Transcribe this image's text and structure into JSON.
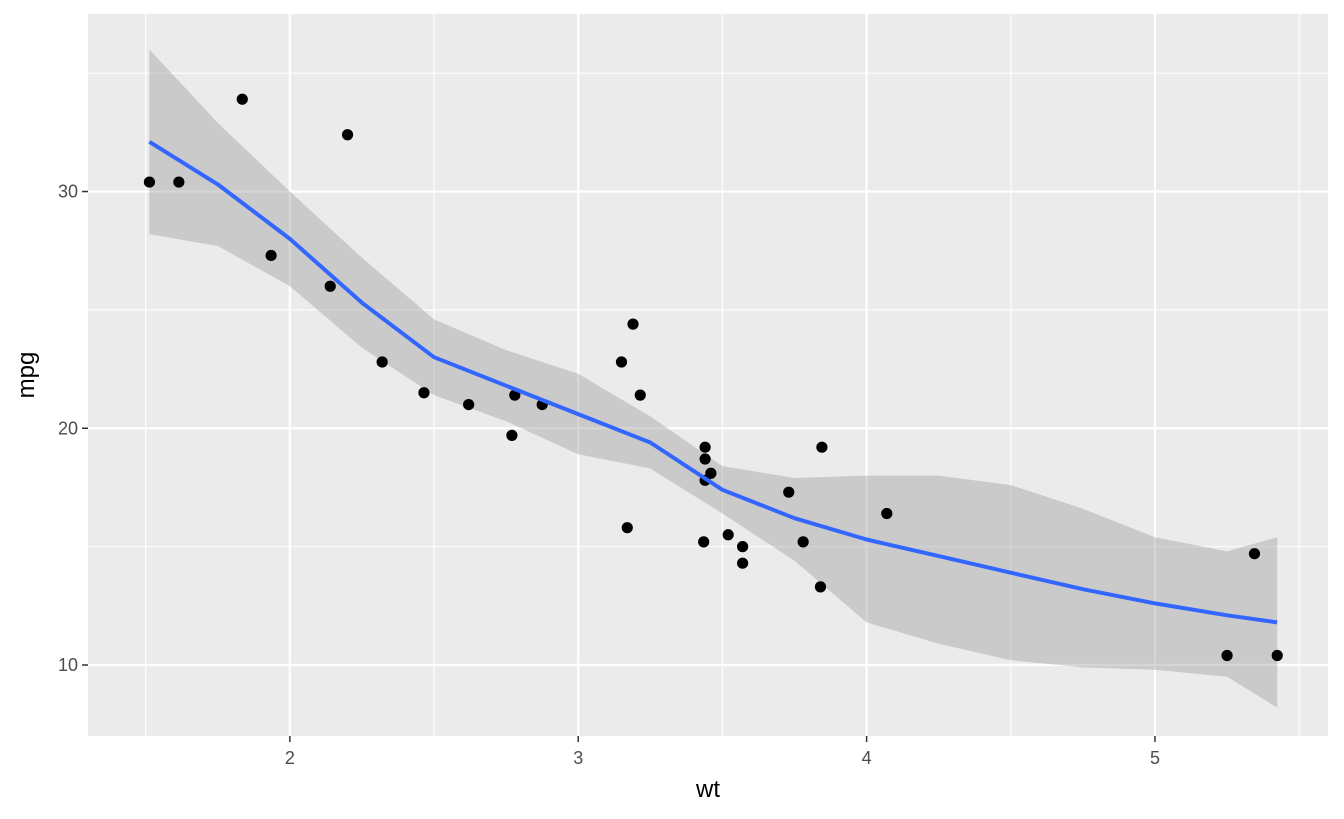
{
  "chart_data": {
    "type": "scatter",
    "xlabel": "wt",
    "ylabel": "mpg",
    "xlim": [
      1.3,
      5.6
    ],
    "ylim": [
      7,
      37.5
    ],
    "x_ticks": [
      2,
      3,
      4,
      5
    ],
    "x_tick_labels": [
      "2",
      "3",
      "4",
      "5"
    ],
    "y_ticks": [
      10,
      20,
      30
    ],
    "y_tick_labels": [
      "10",
      "20",
      "30"
    ],
    "grid": true,
    "colors": {
      "panel": "#ebebeb",
      "grid": "#ffffff",
      "points": "#000000",
      "smooth_line": "#3366ff",
      "ribbon": "#999999"
    },
    "points": [
      {
        "x": 1.513,
        "y": 30.4
      },
      {
        "x": 1.615,
        "y": 30.4
      },
      {
        "x": 1.835,
        "y": 33.9
      },
      {
        "x": 1.935,
        "y": 27.3
      },
      {
        "x": 2.14,
        "y": 26.0
      },
      {
        "x": 2.2,
        "y": 32.4
      },
      {
        "x": 2.32,
        "y": 22.8
      },
      {
        "x": 2.465,
        "y": 21.5
      },
      {
        "x": 2.62,
        "y": 21.0
      },
      {
        "x": 2.77,
        "y": 19.7
      },
      {
        "x": 2.78,
        "y": 21.4
      },
      {
        "x": 2.875,
        "y": 21.0
      },
      {
        "x": 3.15,
        "y": 22.8
      },
      {
        "x": 3.17,
        "y": 15.8
      },
      {
        "x": 3.19,
        "y": 24.4
      },
      {
        "x": 3.215,
        "y": 21.4
      },
      {
        "x": 3.435,
        "y": 15.2
      },
      {
        "x": 3.44,
        "y": 18.7
      },
      {
        "x": 3.44,
        "y": 17.8
      },
      {
        "x": 3.44,
        "y": 19.2
      },
      {
        "x": 3.46,
        "y": 18.1
      },
      {
        "x": 3.52,
        "y": 15.5
      },
      {
        "x": 3.57,
        "y": 14.3
      },
      {
        "x": 3.57,
        "y": 15.0
      },
      {
        "x": 3.73,
        "y": 17.3
      },
      {
        "x": 3.78,
        "y": 15.2
      },
      {
        "x": 3.84,
        "y": 13.3
      },
      {
        "x": 3.845,
        "y": 19.2
      },
      {
        "x": 4.07,
        "y": 16.4
      },
      {
        "x": 5.25,
        "y": 10.4
      },
      {
        "x": 5.345,
        "y": 14.7
      },
      {
        "x": 5.424,
        "y": 10.4
      }
    ],
    "smooth": [
      {
        "x": 1.513,
        "y": 32.1,
        "ymin": 28.2,
        "ymax": 36.0
      },
      {
        "x": 1.75,
        "y": 30.3,
        "ymin": 27.7,
        "ymax": 32.9
      },
      {
        "x": 2.0,
        "y": 28.0,
        "ymin": 26.0,
        "ymax": 30.0
      },
      {
        "x": 2.25,
        "y": 25.3,
        "ymin": 23.4,
        "ymax": 27.2
      },
      {
        "x": 2.5,
        "y": 23.0,
        "ymin": 21.4,
        "ymax": 24.6
      },
      {
        "x": 2.75,
        "y": 21.8,
        "ymin": 20.3,
        "ymax": 23.3
      },
      {
        "x": 3.0,
        "y": 20.6,
        "ymin": 18.9,
        "ymax": 22.3
      },
      {
        "x": 3.25,
        "y": 19.4,
        "ymin": 18.3,
        "ymax": 20.5
      },
      {
        "x": 3.5,
        "y": 17.4,
        "ymin": 16.4,
        "ymax": 18.4
      },
      {
        "x": 3.75,
        "y": 16.2,
        "ymin": 14.4,
        "ymax": 17.9
      },
      {
        "x": 4.0,
        "y": 15.3,
        "ymin": 11.8,
        "ymax": 18.0
      },
      {
        "x": 4.25,
        "y": 14.6,
        "ymin": 10.9,
        "ymax": 18.0
      },
      {
        "x": 4.5,
        "y": 13.9,
        "ymin": 10.2,
        "ymax": 17.6
      },
      {
        "x": 4.75,
        "y": 13.2,
        "ymin": 9.9,
        "ymax": 16.6
      },
      {
        "x": 5.0,
        "y": 12.6,
        "ymin": 9.8,
        "ymax": 15.4
      },
      {
        "x": 5.25,
        "y": 12.1,
        "ymin": 9.5,
        "ymax": 14.8
      },
      {
        "x": 5.424,
        "y": 11.8,
        "ymin": 8.2,
        "ymax": 15.4
      }
    ]
  }
}
